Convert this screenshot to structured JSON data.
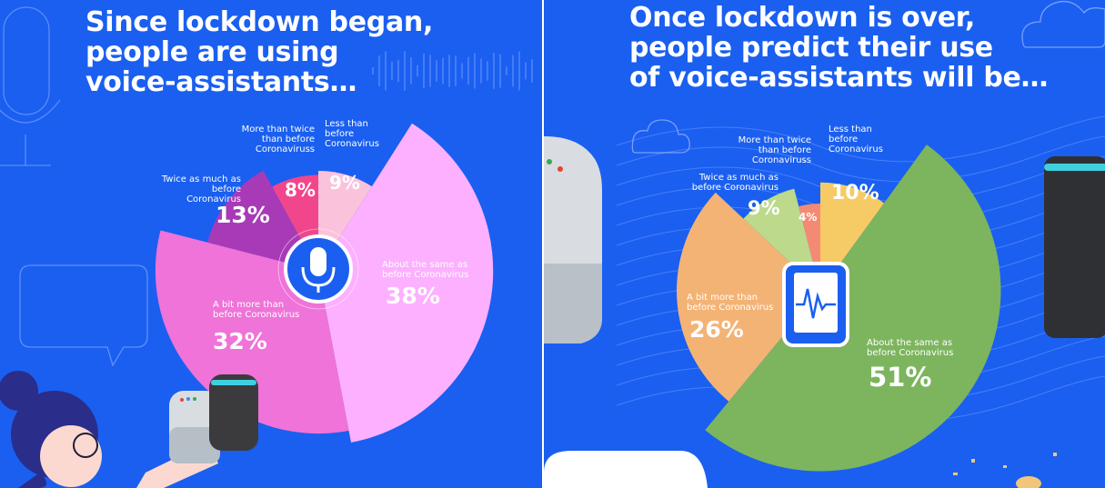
{
  "colors": {
    "background": "#1a5ff0",
    "left_segments": [
      "#fdb0ff",
      "#ef73d8",
      "#a83ab8",
      "#f2468c",
      "#fbc2dc"
    ],
    "right_segments": [
      "#7cb55e",
      "#f3b375",
      "#bcd98c",
      "#f58a74",
      "#f6cb66"
    ]
  },
  "left": {
    "title_lines": [
      "Since lockdown began,",
      "people are using",
      "voice-assistants…"
    ],
    "icon": "microphone-icon"
  },
  "right": {
    "title_lines": [
      "Once lockdown is over,",
      "people predict their use",
      "of voice-assistants will be…"
    ],
    "icon": "phone-waveform-icon"
  },
  "chart_data": [
    {
      "type": "pie",
      "variant": "rose",
      "title": "Since lockdown began, people are using voice-assistants…",
      "slices": [
        {
          "label_lines": [
            "About the same as",
            "before Coronavirus"
          ],
          "value": 38,
          "value_text": "38%"
        },
        {
          "label_lines": [
            "A bit more than",
            "before Coronavirus"
          ],
          "value": 32,
          "value_text": "32%"
        },
        {
          "label_lines": [
            "Twice as much as",
            "before Coronavirus"
          ],
          "value": 13,
          "value_text": "13%"
        },
        {
          "label_lines": [
            "More than twice",
            "than before",
            "Coronaviruss"
          ],
          "value": 8,
          "value_text": "8%"
        },
        {
          "label_lines": [
            "Less than",
            "before",
            "Coronavirus"
          ],
          "value": 9,
          "value_text": "9%"
        }
      ]
    },
    {
      "type": "pie",
      "variant": "rose",
      "title": "Once lockdown is over, people predict their use of voice-assistants will be…",
      "slices": [
        {
          "label_lines": [
            "About the same as",
            "before Coronavirus"
          ],
          "value": 51,
          "value_text": "51%"
        },
        {
          "label_lines": [
            "A bit more than",
            "before Coronavirus"
          ],
          "value": 26,
          "value_text": "26%"
        },
        {
          "label_lines": [
            "Twice as much as",
            "before Coronavirus"
          ],
          "value": 9,
          "value_text": "9%"
        },
        {
          "label_lines": [
            "More than twice",
            "than before",
            "Coronaviruss"
          ],
          "value": 4,
          "value_text": "4%"
        },
        {
          "label_lines": [
            "Less than",
            "before",
            "Coronavirus"
          ],
          "value": 10,
          "value_text": "10%"
        }
      ]
    }
  ]
}
